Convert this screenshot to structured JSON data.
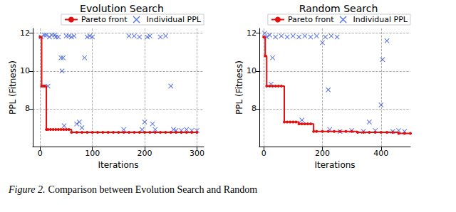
{
  "chart_data": [
    {
      "type": "line",
      "title": "Evolution Search",
      "x_label": "Iterations",
      "y_label": "PPL (Fitness)",
      "xlim": [
        -14,
        313
      ],
      "xticks": [
        0,
        100,
        200,
        300
      ],
      "ylim": [
        6.0,
        12.25
      ],
      "yticks": [
        8,
        10,
        12
      ],
      "grid": true,
      "legend": "upper right",
      "series": [
        {
          "name": "Pareto front",
          "type": "line",
          "color": "#e01010",
          "marker": "circle",
          "line_style": "solid",
          "x": [
            0,
            3,
            6,
            9,
            12,
            15,
            20,
            25,
            30,
            35,
            40,
            45,
            50,
            55,
            60,
            70,
            80,
            90,
            100,
            110,
            120,
            130,
            140,
            150,
            160,
            170,
            180,
            190,
            200,
            210,
            220,
            230,
            240,
            250,
            260,
            270,
            280,
            290,
            300
          ],
          "values": [
            11.8,
            9.2,
            9.2,
            9.2,
            6.9,
            6.9,
            6.9,
            6.9,
            6.9,
            6.9,
            6.9,
            6.9,
            6.9,
            6.9,
            6.75,
            6.75,
            6.75,
            6.75,
            6.75,
            6.75,
            6.75,
            6.75,
            6.75,
            6.75,
            6.75,
            6.75,
            6.75,
            6.75,
            6.75,
            6.75,
            6.75,
            6.75,
            6.75,
            6.75,
            6.75,
            6.75,
            6.75,
            6.75,
            6.75
          ]
        },
        {
          "name": "Individual PPL",
          "type": "scatter",
          "color": "#3050e0",
          "marker": "x",
          "x": [
            2,
            8,
            12,
            15,
            18,
            22,
            28,
            30,
            35,
            40,
            42,
            44,
            46,
            50,
            55,
            60,
            65,
            70,
            75,
            80,
            85,
            90,
            95,
            100,
            160,
            170,
            180,
            190,
            195,
            200,
            205,
            210,
            215,
            220,
            230,
            240,
            250,
            255,
            260,
            270,
            280,
            290,
            300
          ],
          "values": [
            11.8,
            11.9,
            11.9,
            9.2,
            11.8,
            11.9,
            11.9,
            11.8,
            11.8,
            10.7,
            10.0,
            10.7,
            7.1,
            11.85,
            11.85,
            11.8,
            11.85,
            7.2,
            7.3,
            7.0,
            10.7,
            11.8,
            11.85,
            11.8,
            6.9,
            11.85,
            11.85,
            11.8,
            6.9,
            7.3,
            11.8,
            11.85,
            7.2,
            6.9,
            11.8,
            11.85,
            9.2,
            6.9,
            6.85,
            6.85,
            6.9,
            6.85,
            6.85
          ]
        }
      ]
    },
    {
      "type": "line",
      "title": "Random Search",
      "x_label": "Iterations",
      "y_label": "PPL (Fitness)",
      "xlim": [
        -15,
        500
      ],
      "xticks": [
        0,
        200,
        400
      ],
      "ylim": [
        6.0,
        12.25
      ],
      "yticks": [
        8,
        10,
        12
      ],
      "grid": true,
      "legend": "upper right",
      "series": [
        {
          "name": "Pareto front",
          "type": "line",
          "color": "#e01010",
          "marker": "circle",
          "line_style": "solid",
          "x": [
            0,
            5,
            10,
            20,
            30,
            40,
            50,
            60,
            70,
            80,
            90,
            100,
            110,
            120,
            130,
            140,
            150,
            160,
            170,
            180,
            200,
            220,
            240,
            260,
            280,
            300,
            320,
            340,
            360,
            380,
            400,
            420,
            440,
            460,
            480,
            500
          ],
          "values": [
            11.8,
            10.8,
            9.2,
            9.2,
            9.2,
            9.2,
            9.2,
            9.2,
            7.3,
            7.3,
            7.3,
            7.3,
            7.3,
            7.2,
            7.2,
            7.2,
            7.2,
            7.2,
            6.8,
            6.8,
            6.8,
            6.8,
            6.8,
            6.8,
            6.8,
            6.8,
            6.75,
            6.75,
            6.75,
            6.75,
            6.75,
            6.75,
            6.75,
            6.7,
            6.7,
            6.7
          ]
        },
        {
          "name": "Individual PPL",
          "type": "scatter",
          "color": "#3050e0",
          "marker": "x",
          "x": [
            3,
            10,
            20,
            25,
            30,
            40,
            60,
            80,
            100,
            120,
            130,
            140,
            160,
            180,
            200,
            210,
            220,
            225,
            230,
            250,
            260,
            300,
            340,
            360,
            380,
            400,
            405,
            420,
            440,
            460,
            480
          ],
          "values": [
            12.0,
            11.8,
            11.9,
            9.3,
            10.7,
            11.8,
            11.85,
            11.8,
            11.85,
            11.8,
            7.4,
            11.85,
            11.8,
            11.85,
            11.5,
            11.8,
            9.0,
            6.9,
            11.85,
            11.8,
            6.8,
            6.85,
            6.8,
            7.3,
            6.85,
            8.2,
            10.6,
            11.6,
            6.8,
            6.85,
            6.8
          ]
        }
      ]
    }
  ],
  "caption": {
    "label": "Figure 2.",
    "text": "Comparison between Evolution Search and Random"
  }
}
